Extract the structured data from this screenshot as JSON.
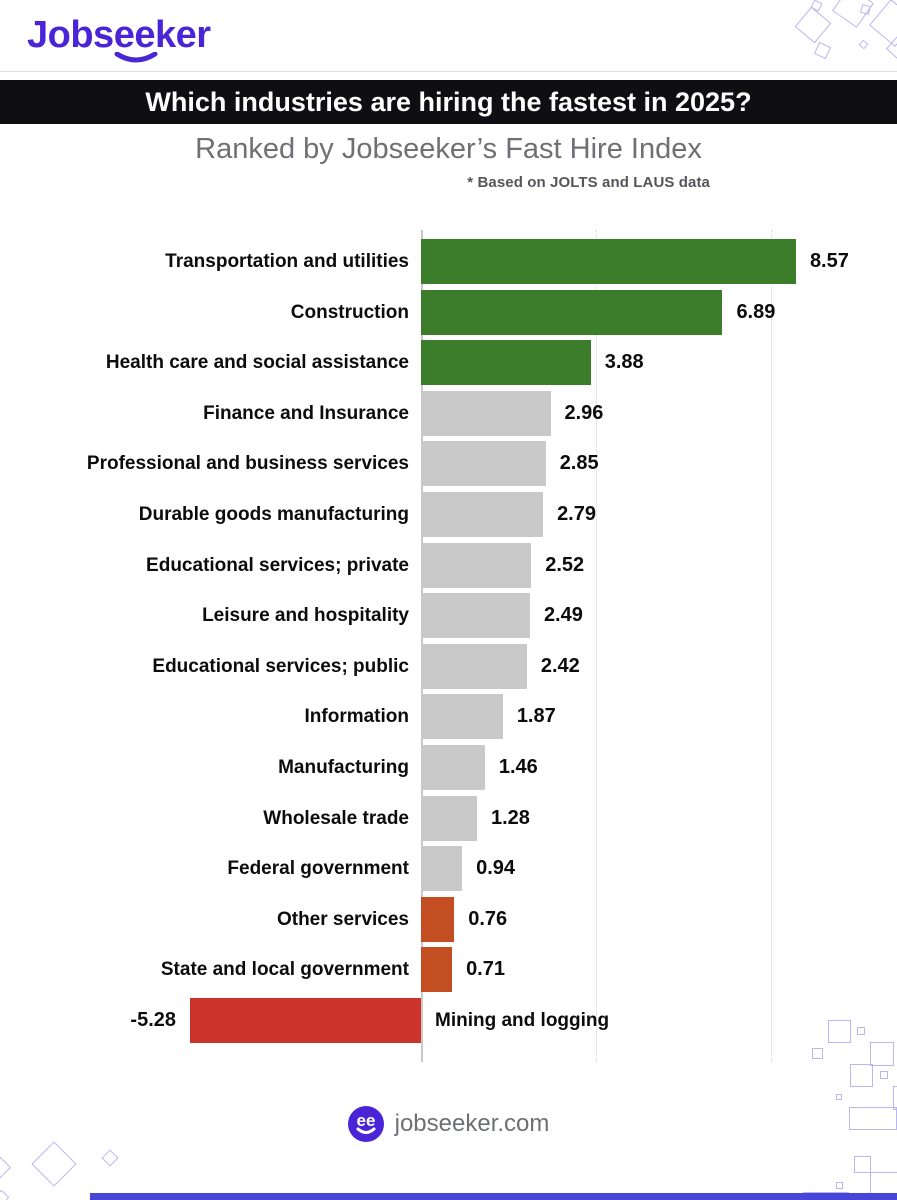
{
  "brand": {
    "logo_parts": {
      "pre": "Jobs",
      "mid": "ee",
      "post": "ker"
    },
    "logo_color": "#4A25D8",
    "footer_site": "jobseeker.com",
    "footer_icon_letters": "ee"
  },
  "header": {
    "title": "Which industries are hiring the fastest in 2025?",
    "subtitle": "Ranked by Jobseeker’s Fast Hire Index",
    "footnote": "* Based on JOLTS and LAUS data"
  },
  "chart_data": {
    "type": "bar",
    "orientation": "horizontal",
    "title": "Which industries are hiring the fastest in 2025?",
    "subtitle": "Ranked by Jobseeker’s Fast Hire Index",
    "source_note": "* Based on JOLTS and LAUS data",
    "xlabel": "Fast Hire Index",
    "xlim": [
      -6,
      10
    ],
    "gridlines_x": [
      4,
      8
    ],
    "grid": "dotted vertical gridlines, solid zero axis",
    "legend": "none",
    "categories": [
      "Transportation and utilities",
      "Construction",
      "Health care and social assistance",
      "Finance and Insurance",
      "Professional and business services",
      "Durable goods manufacturing",
      "Educational services; private",
      "Leisure and hospitality",
      "Educational services; public",
      "Information",
      "Manufacturing",
      "Wholesale trade",
      "Federal government",
      "Other services",
      "State and local government",
      "Mining and logging"
    ],
    "values": [
      8.57,
      6.89,
      3.88,
      2.96,
      2.85,
      2.79,
      2.52,
      2.49,
      2.42,
      1.87,
      1.46,
      1.28,
      0.94,
      0.76,
      0.71,
      -5.28
    ],
    "display_values": [
      "8.57",
      "6.89",
      "3.88",
      "2.96",
      "2.85",
      "2.79",
      "2.52",
      "2.49",
      "2.42",
      "1.87",
      "1.46",
      "1.28",
      "0.94",
      "0.76",
      "0.71",
      "-5.28"
    ],
    "bar_colors": [
      "#3B7D2A",
      "#3B7D2A",
      "#3B7D2A",
      "#C9C9C9",
      "#C9C9C9",
      "#C9C9C9",
      "#C9C9C9",
      "#C9C9C9",
      "#C9C9C9",
      "#C9C9C9",
      "#C9C9C9",
      "#C9C9C9",
      "#C9C9C9",
      "#C34E22",
      "#C34E22",
      "#CC332A"
    ],
    "color_meaning": {
      "#3B7D2A": "fastest hiring (top 3)",
      "#C9C9C9": "mid-ranked industries",
      "#C34E22": "slow hiring",
      "#CC332A": "negative index"
    }
  }
}
